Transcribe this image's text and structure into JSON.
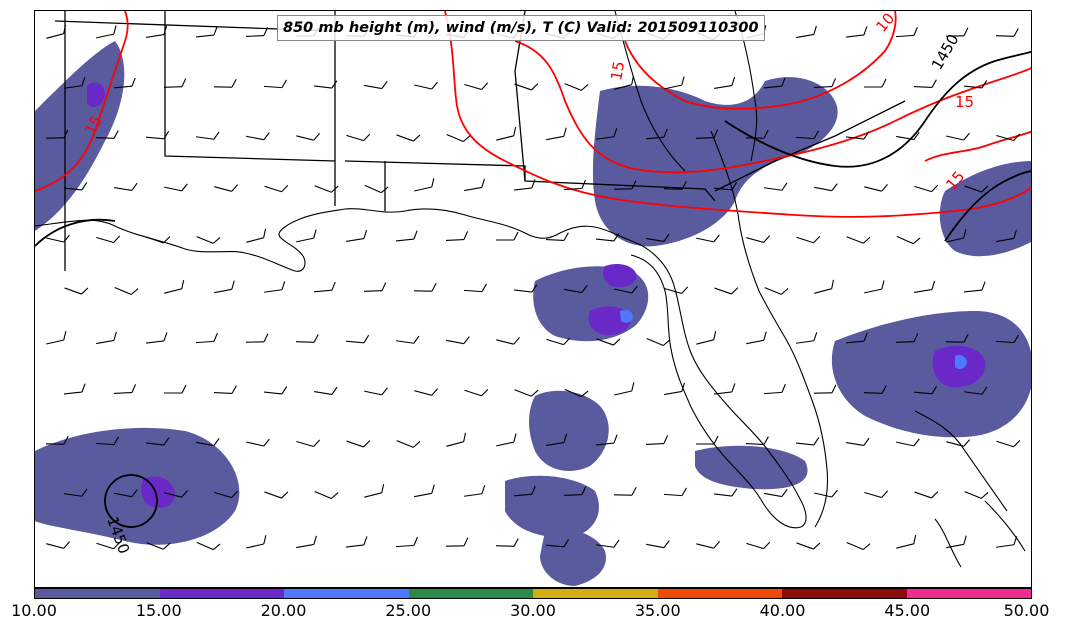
{
  "title": "850 mb height (m), wind (m/s), T (C) Valid: 201509110300",
  "contour_labels": {
    "height_1450_ne": "1450",
    "height_1450_sw": "1450",
    "temp_15_ne": "15",
    "temp_15_east": "15",
    "temp_15_north": "15",
    "temp_10_north": "10",
    "temp_15_nw": "15"
  },
  "colorbar": {
    "colors": [
      "#5a5a9e",
      "#6a28c8",
      "#5078ff",
      "#2a8a48",
      "#d4ae10",
      "#f04a0a",
      "#8c0c0c",
      "#f02c8c"
    ],
    "ticks": [
      "10.00",
      "15.00",
      "20.00",
      "25.00",
      "30.00",
      "35.00",
      "40.00",
      "45.00",
      "50.00"
    ]
  },
  "map_colors": {
    "precip_base": "#5a5a9e",
    "precip_mid": "#6a28c8",
    "precip_high": "#5078ff",
    "temperature_contour": "#ff0000",
    "height_contour": "#000000",
    "coastline": "#000000"
  }
}
